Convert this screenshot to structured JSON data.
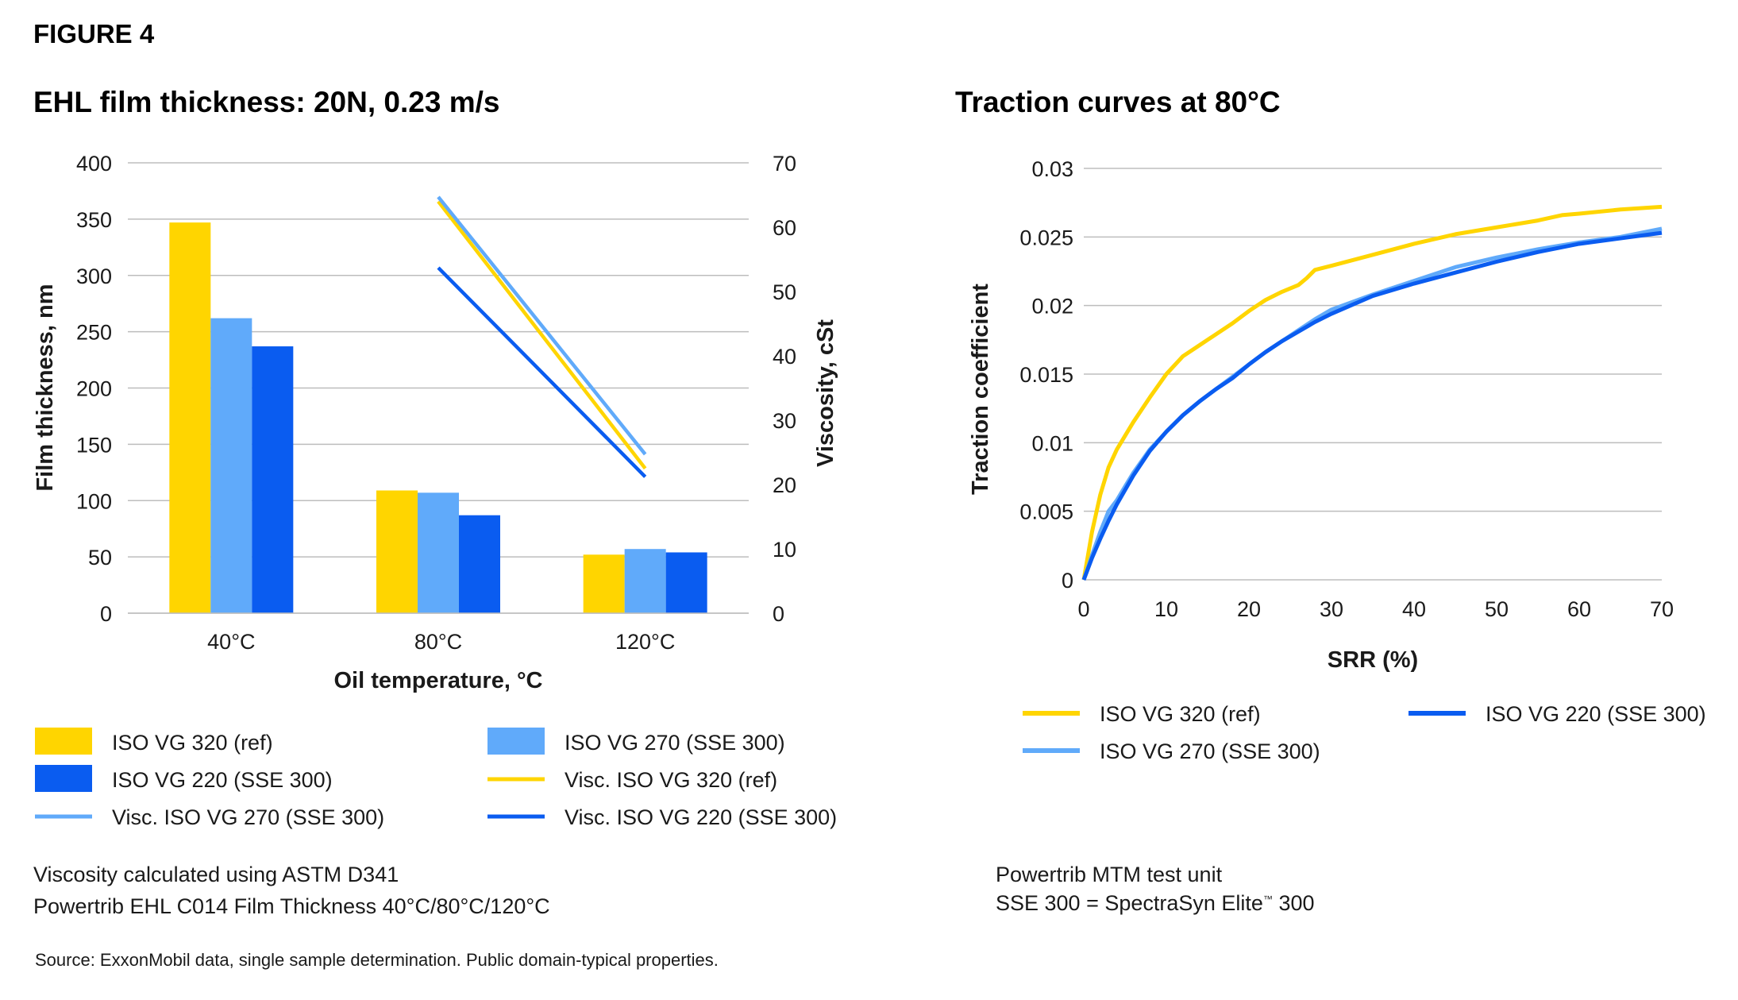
{
  "figure_label": "FIGURE 4",
  "colors": {
    "yellow": "#FFD500",
    "light_blue": "#60AAFA",
    "blue": "#0A5CF0",
    "grid": "#bdbdbd"
  },
  "chart_data": [
    {
      "type": "bar",
      "title": "EHL film thickness: 20N, 0.23 m/s",
      "xlabel": "Oil temperature, °C",
      "ylabel": "Film thickness, nm",
      "y2label": "Viscosity, cSt",
      "categories": [
        "40°C",
        "80°C",
        "120°C"
      ],
      "ylim": [
        0,
        400
      ],
      "yticks": [
        0,
        50,
        100,
        150,
        200,
        250,
        300,
        350,
        400
      ],
      "y2lim": [
        0,
        70
      ],
      "y2ticks": [
        0,
        10,
        20,
        30,
        40,
        50,
        60,
        70
      ],
      "grid": true,
      "series": [
        {
          "name": "ISO VG 320 (ref)",
          "kind": "bar",
          "color": "#FFD500",
          "values": [
            347,
            109,
            52
          ]
        },
        {
          "name": "ISO VG 270 (SSE 300)",
          "kind": "bar",
          "color": "#60AAFA",
          "values": [
            262,
            107,
            57
          ]
        },
        {
          "name": "ISO VG 220 (SSE 300)",
          "kind": "bar",
          "color": "#0A5CF0",
          "values": [
            237,
            87,
            54
          ]
        },
        {
          "name": "Visc. ISO VG 320 (ref)",
          "kind": "line",
          "axis": "right",
          "color": "#FFD500",
          "values": [
            null,
            64,
            22.5
          ]
        },
        {
          "name": "Visc. ISO VG 270 (SSE 300)",
          "kind": "line",
          "axis": "right",
          "color": "#60AAFA",
          "values": [
            null,
            64.7,
            24.7
          ]
        },
        {
          "name": "Visc. ISO VG 220 (SSE 300)",
          "kind": "line",
          "axis": "right",
          "color": "#0A5CF0",
          "values": [
            null,
            53.7,
            21.2
          ]
        }
      ],
      "legend": [
        {
          "label": "ISO VG 320 (ref)",
          "kind": "box",
          "color": "#FFD500"
        },
        {
          "label": "ISO VG 270 (SSE 300)",
          "kind": "box",
          "color": "#60AAFA"
        },
        {
          "label": "ISO VG 220 (SSE 300)",
          "kind": "box",
          "color": "#0A5CF0"
        },
        {
          "label": "Visc. ISO VG 320 (ref)",
          "kind": "line",
          "color": "#FFD500"
        },
        {
          "label": "Visc. ISO VG 270 (SSE 300)",
          "kind": "line",
          "color": "#60AAFA"
        },
        {
          "label": "Visc. ISO VG 220 (SSE 300)",
          "kind": "line",
          "color": "#0A5CF0"
        }
      ],
      "notes": [
        "Viscosity calculated using ASTM D341",
        "Powertrib EHL C014 Film Thickness 40°C/80°C/120°C"
      ]
    },
    {
      "type": "line",
      "title": "Traction curves at 80°C",
      "xlabel": "SRR (%)",
      "ylabel": "Traction coefficient",
      "xlim": [
        0,
        70
      ],
      "xticks": [
        0,
        10,
        20,
        30,
        40,
        50,
        60,
        70
      ],
      "ylim": [
        0,
        0.03
      ],
      "yticks": [
        "0",
        "0.005",
        "0.01",
        "0.015",
        "0.02",
        "0.025",
        "0.03"
      ],
      "grid": true,
      "series": [
        {
          "name": "ISO VG 320 (ref)",
          "color": "#FFD500",
          "x": [
            0,
            1,
            2,
            3,
            4,
            6,
            8,
            10,
            12,
            14,
            16,
            18,
            20,
            22,
            24,
            26,
            27,
            28,
            30,
            35,
            40,
            45,
            50,
            55,
            58,
            60,
            65,
            70
          ],
          "y": [
            0,
            0.0035,
            0.0062,
            0.0082,
            0.0095,
            0.0115,
            0.0133,
            0.015,
            0.0163,
            0.0171,
            0.0179,
            0.0187,
            0.0196,
            0.0204,
            0.021,
            0.0215,
            0.022,
            0.0226,
            0.0229,
            0.0237,
            0.0245,
            0.0252,
            0.0257,
            0.0262,
            0.0266,
            0.0267,
            0.027,
            0.0272
          ]
        },
        {
          "name": "ISO VG 270 (SSE 300)",
          "color": "#60AAFA",
          "x": [
            0,
            1,
            2,
            3,
            4,
            5,
            6,
            8,
            10,
            12,
            14,
            16,
            18,
            20,
            22,
            24,
            26,
            28,
            30,
            35,
            40,
            45,
            50,
            55,
            60,
            65,
            70
          ],
          "y": [
            0,
            0.0018,
            0.0035,
            0.005,
            0.0058,
            0.0068,
            0.0078,
            0.0095,
            0.0108,
            0.012,
            0.013,
            0.0139,
            0.0148,
            0.0157,
            0.0166,
            0.0174,
            0.0182,
            0.019,
            0.0197,
            0.0208,
            0.0218,
            0.0228,
            0.0235,
            0.0241,
            0.0246,
            0.025,
            0.0256
          ]
        },
        {
          "name": "ISO VG 220 (SSE 300)",
          "color": "#0A5CF0",
          "x": [
            0,
            1,
            2,
            3,
            4,
            6,
            8,
            10,
            12,
            14,
            16,
            18,
            20,
            22,
            24,
            26,
            28,
            30,
            35,
            40,
            45,
            50,
            55,
            60,
            65,
            70
          ],
          "y": [
            0,
            0.0016,
            0.003,
            0.0043,
            0.0055,
            0.0076,
            0.0094,
            0.0108,
            0.012,
            0.013,
            0.0139,
            0.0147,
            0.0157,
            0.0166,
            0.0174,
            0.0181,
            0.0188,
            0.0194,
            0.0207,
            0.0216,
            0.0224,
            0.0232,
            0.0239,
            0.0245,
            0.0249,
            0.0253
          ]
        }
      ],
      "legend": [
        {
          "label": "ISO VG 320 (ref)",
          "color": "#FFD500"
        },
        {
          "label": "ISO VG 220 (SSE 300)",
          "color": "#0A5CF0"
        },
        {
          "label": "ISO VG 270 (SSE 300)",
          "color": "#60AAFA"
        }
      ],
      "notes": [
        "Powertrib MTM test unit",
        "SSE 300 = SpectraSyn Elite",
        "™",
        " 300"
      ]
    }
  ],
  "source_note": "Source: ExxonMobil data, single sample determination. Public domain-typical properties."
}
